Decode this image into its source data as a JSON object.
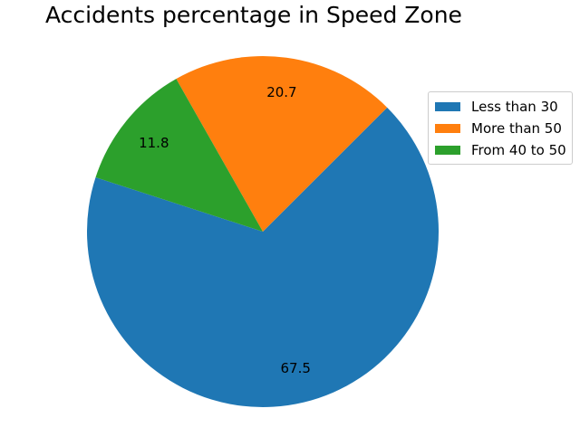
{
  "chart_data": {
    "type": "pie",
    "title": "Accidents percentage in Speed Zone",
    "slices": [
      {
        "label": "Less than 30",
        "value": 67.5,
        "display": "67.5",
        "color": "#1f77b4"
      },
      {
        "label": "More than 50",
        "value": 20.7,
        "display": "20.7",
        "color": "#ff7f0e"
      },
      {
        "label": "From 40 to 50",
        "value": 11.8,
        "display": "11.8",
        "color": "#2ca02c"
      }
    ],
    "legend_position": "right",
    "grid": false
  }
}
